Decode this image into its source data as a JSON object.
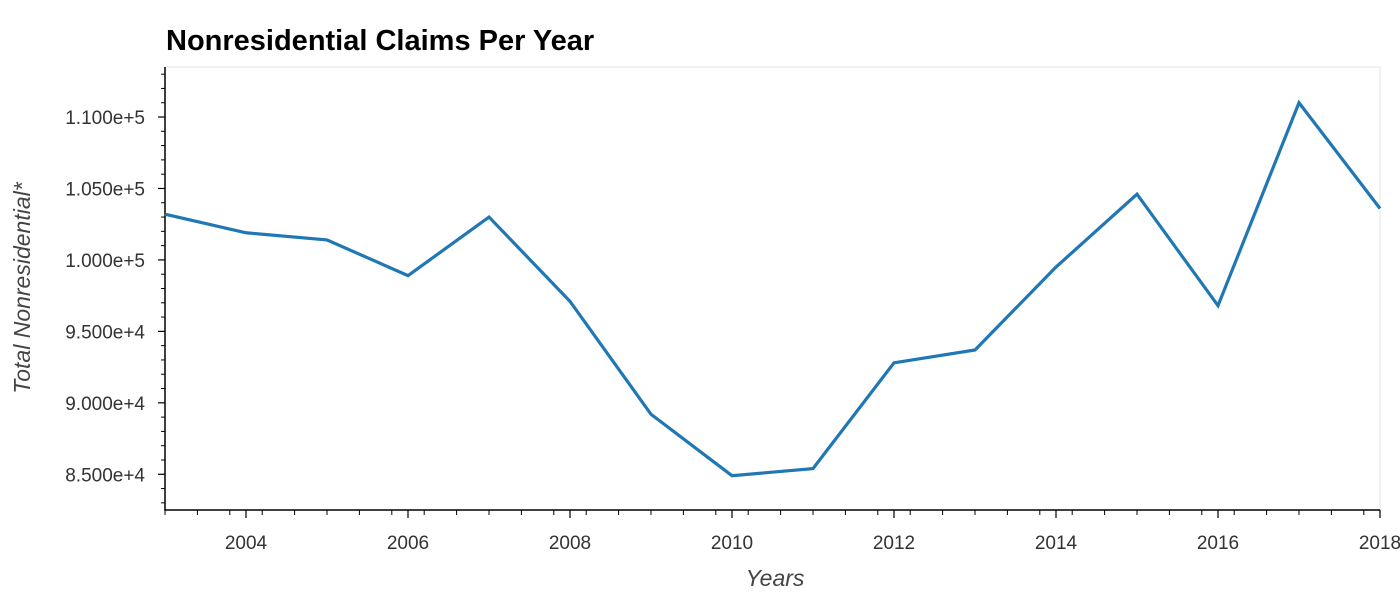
{
  "chart_data": {
    "type": "line",
    "title": "Nonresidential Claims Per Year",
    "xlabel": "Years",
    "ylabel": "Total Nonresidential*",
    "x": [
      2003,
      2004,
      2005,
      2006,
      2007,
      2008,
      2009,
      2010,
      2011,
      2012,
      2013,
      2014,
      2015,
      2016,
      2017,
      2018
    ],
    "series": [
      {
        "values": [
          103200,
          101900,
          101400,
          98900,
          103000,
          97100,
          89200,
          84900,
          85400,
          92800,
          93700,
          99500,
          104600,
          96800,
          111000,
          103600
        ]
      }
    ],
    "xlim": [
      2003,
      2018
    ],
    "ylim": [
      82500,
      113500
    ],
    "x_ticks": [
      2004,
      2006,
      2008,
      2010,
      2012,
      2014,
      2016,
      2018
    ],
    "x_tick_labels": [
      "2004",
      "2006",
      "2008",
      "2010",
      "2012",
      "2014",
      "2016",
      "2018"
    ],
    "y_ticks": [
      85000,
      90000,
      95000,
      100000,
      105000,
      110000
    ],
    "y_tick_labels": [
      "8.500e+4",
      "9.000e+4",
      "9.500e+4",
      "1.000e+5",
      "1.050e+5",
      "1.100e+5"
    ],
    "grid": false,
    "colors": {
      "line": "#1f77b4",
      "axis": "#000000",
      "frame": "#e5e5e5"
    }
  }
}
